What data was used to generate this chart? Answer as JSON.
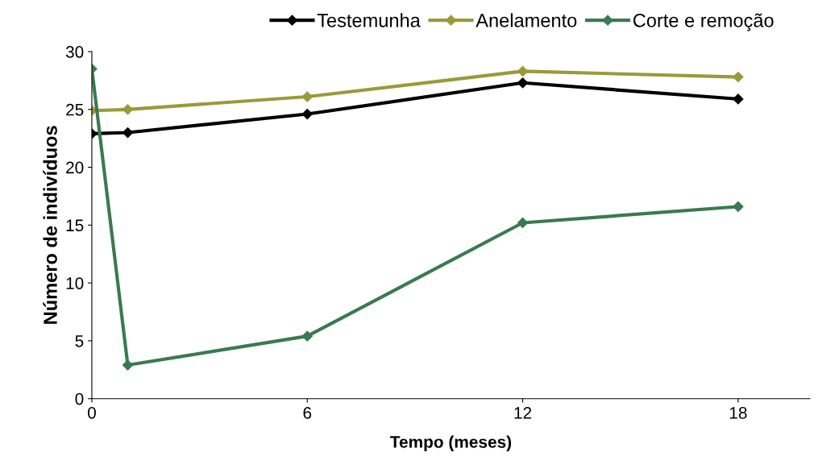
{
  "chart_data": {
    "type": "line",
    "xlabel": "Tempo (meses)",
    "ylabel": "Número de indivíduos",
    "x": [
      0,
      1,
      6,
      12,
      18
    ],
    "series": [
      {
        "name": "Testemunha",
        "color": "#000000",
        "values": [
          22.9,
          23.0,
          24.6,
          27.3,
          25.9
        ]
      },
      {
        "name": "Anelamento",
        "color": "#9a9a3a",
        "values": [
          24.9,
          25.0,
          26.1,
          28.3,
          27.8
        ]
      },
      {
        "name": "Corte e remoção",
        "color": "#3a7a50",
        "values": [
          28.5,
          2.9,
          5.4,
          15.2,
          16.6
        ]
      }
    ],
    "xlim": [
      0,
      20
    ],
    "xticks": [
      0,
      6,
      12,
      18
    ],
    "ylim": [
      0,
      30
    ],
    "yticks": [
      0,
      5,
      10,
      15,
      20,
      25,
      30
    ],
    "grid": false,
    "legend": "top",
    "marker": "diamond",
    "line_style": "solid"
  }
}
